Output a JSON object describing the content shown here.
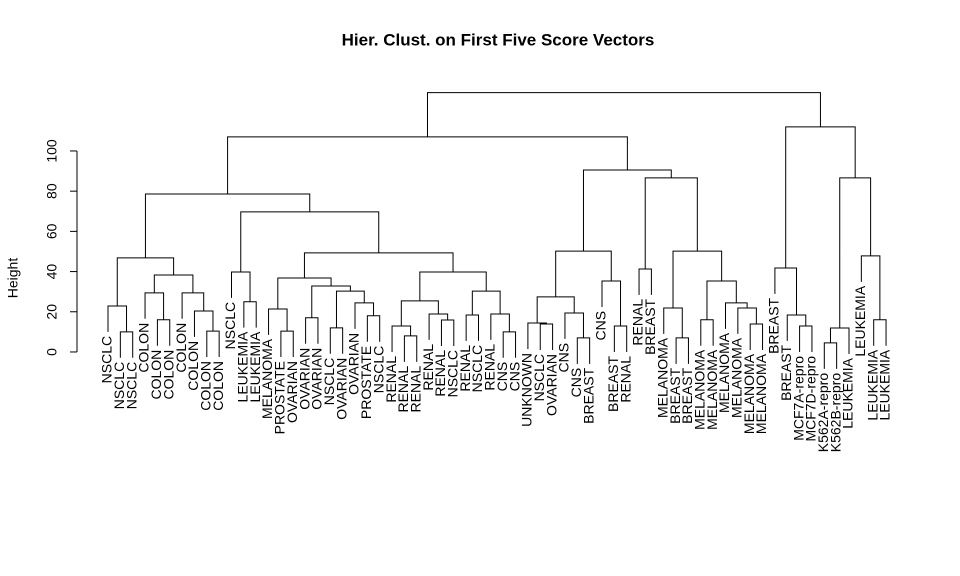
{
  "chart_data": {
    "type": "dendrogram",
    "title": "Hier. Clust. on First Five Score Vectors",
    "y_label": "Height",
    "ylim": [
      -13,
      136
    ],
    "yticks": [
      0,
      20,
      40,
      60,
      80,
      100
    ],
    "color": "#000000",
    "tree": {
      "height": 129,
      "children": [
        {
          "height": 107,
          "children": [
            {
              "height": 78.6,
              "children": [
                {
                  "height": 46.8,
                  "children": [
                    {
                      "height": 22.9,
                      "children": [
                        {
                          "label": "NSCLC"
                        },
                        {
                          "height": 10,
                          "children": [
                            {
                              "label": "NSCLC"
                            },
                            {
                              "label": "NSCLC"
                            }
                          ]
                        }
                      ]
                    },
                    {
                      "height": 38.3,
                      "children": [
                        {
                          "height": 29.4,
                          "children": [
                            {
                              "label": "COLON"
                            },
                            {
                              "height": 16,
                              "children": [
                                {
                                  "label": "COLON"
                                },
                                {
                                  "label": "COLON"
                                }
                              ]
                            }
                          ]
                        },
                        {
                          "height": 29.4,
                          "children": [
                            {
                              "label": "COLON"
                            },
                            {
                              "height": 20.4,
                              "children": [
                                {
                                  "label": "COLON"
                                },
                                {
                                  "height": 10.4,
                                  "children": [
                                    {
                                      "label": "COLON"
                                    },
                                    {
                                      "label": "COLON"
                                    }
                                  ]
                                }
                              ]
                            }
                          ]
                        }
                      ]
                    }
                  ]
                },
                {
                  "height": 69.7,
                  "children": [
                    {
                      "height": 39.8,
                      "children": [
                        {
                          "label": "NSCLC"
                        },
                        {
                          "height": 25,
                          "children": [
                            {
                              "label": "LEUKEMIA"
                            },
                            {
                              "label": "LEUKEMIA"
                            }
                          ]
                        }
                      ]
                    },
                    {
                      "height": 49.3,
                      "children": [
                        {
                          "height": 36.8,
                          "children": [
                            {
                              "height": 21.4,
                              "children": [
                                {
                                  "label": "MELANOMA"
                                },
                                {
                                  "height": 10.4,
                                  "children": [
                                    {
                                      "label": "PROSTATE"
                                    },
                                    {
                                      "label": "OVARIAN"
                                    }
                                  ]
                                }
                              ]
                            },
                            {
                              "height": 32.8,
                              "children": [
                                {
                                  "height": 17,
                                  "children": [
                                    {
                                      "label": "OVARIAN"
                                    },
                                    {
                                      "label": "OVARIAN"
                                    }
                                  ]
                                },
                                {
                                  "height": 30.3,
                                  "children": [
                                    {
                                      "height": 12,
                                      "children": [
                                        {
                                          "label": "NSCLC"
                                        },
                                        {
                                          "label": "OVARIAN"
                                        }
                                      ]
                                    },
                                    {
                                      "height": 24.4,
                                      "children": [
                                        {
                                          "label": "OVARIAN"
                                        },
                                        {
                                          "height": 18,
                                          "children": [
                                            {
                                              "label": "PROSTATE"
                                            },
                                            {
                                              "label": "NSCLC"
                                            }
                                          ]
                                        }
                                      ]
                                    }
                                  ]
                                }
                              ]
                            }
                          ]
                        },
                        {
                          "height": 39.8,
                          "children": [
                            {
                              "height": 25.4,
                              "children": [
                                {
                                  "height": 12.9,
                                  "children": [
                                    {
                                      "label": "RENAL"
                                    },
                                    {
                                      "height": 8,
                                      "children": [
                                        {
                                          "label": "RENAL"
                                        },
                                        {
                                          "label": "RENAL"
                                        }
                                      ]
                                    }
                                  ]
                                },
                                {
                                  "height": 18.9,
                                  "children": [
                                    {
                                      "label": "RENAL"
                                    },
                                    {
                                      "height": 15.9,
                                      "children": [
                                        {
                                          "label": "RENAL"
                                        },
                                        {
                                          "label": "NSCLC"
                                        }
                                      ]
                                    }
                                  ]
                                }
                              ]
                            },
                            {
                              "height": 30.3,
                              "children": [
                                {
                                  "height": 18.4,
                                  "children": [
                                    {
                                      "label": "RENAL"
                                    },
                                    {
                                      "label": "NSCLC"
                                    }
                                  ]
                                },
                                {
                                  "height": 18.9,
                                  "children": [
                                    {
                                      "label": "RENAL"
                                    },
                                    {
                                      "height": 10,
                                      "children": [
                                        {
                                          "label": "CNS"
                                        },
                                        {
                                          "label": "CNS"
                                        }
                                      ]
                                    }
                                  ]
                                }
                              ]
                            }
                          ]
                        }
                      ]
                    }
                  ]
                }
              ]
            },
            {
              "height": 90.5,
              "children": [
                {
                  "height": 50.2,
                  "children": [
                    {
                      "height": 27.4,
                      "children": [
                        {
                          "height": 14.4,
                          "children": [
                            {
                              "label": "UNKNOWN"
                            },
                            {
                              "height": 13.9,
                              "children": [
                                {
                                  "label": "NSCLC"
                                },
                                {
                                  "label": "OVARIAN"
                                }
                              ]
                            }
                          ]
                        },
                        {
                          "height": 19.4,
                          "children": [
                            {
                              "label": "CNS"
                            },
                            {
                              "height": 7,
                              "children": [
                                {
                                  "label": "CNS"
                                },
                                {
                                  "label": "BREAST"
                                }
                              ]
                            }
                          ]
                        }
                      ]
                    },
                    {
                      "height": 35.3,
                      "children": [
                        {
                          "label": "CNS"
                        },
                        {
                          "height": 12.9,
                          "children": [
                            {
                              "label": "BREAST"
                            },
                            {
                              "label": "RENAL"
                            }
                          ]
                        }
                      ]
                    }
                  ]
                },
                {
                  "height": 86.6,
                  "children": [
                    {
                      "height": 41.3,
                      "children": [
                        {
                          "label": "RENAL"
                        },
                        {
                          "label": "BREAST"
                        }
                      ]
                    },
                    {
                      "height": 50.2,
                      "children": [
                        {
                          "height": 21.9,
                          "children": [
                            {
                              "label": "MELANOMA"
                            },
                            {
                              "height": 7,
                              "children": [
                                {
                                  "label": "BREAST"
                                },
                                {
                                  "label": "BREAST"
                                }
                              ]
                            }
                          ]
                        },
                        {
                          "height": 35.3,
                          "children": [
                            {
                              "height": 16,
                              "children": [
                                {
                                  "label": "MELANOMA"
                                },
                                {
                                  "label": "MELANOMA"
                                }
                              ]
                            },
                            {
                              "height": 24.4,
                              "children": [
                                {
                                  "label": "MELANOMA"
                                },
                                {
                                  "height": 21.9,
                                  "children": [
                                    {
                                      "label": "MELANOMA"
                                    },
                                    {
                                      "height": 13.9,
                                      "children": [
                                        {
                                          "label": "MELANOMA"
                                        },
                                        {
                                          "label": "MELANOMA"
                                        }
                                      ]
                                    }
                                  ]
                                }
                              ]
                            }
                          ]
                        }
                      ]
                    }
                  ]
                }
              ]
            }
          ]
        },
        {
          "height": 112,
          "children": [
            {
              "height": 41.8,
              "children": [
                {
                  "label": "BREAST"
                },
                {
                  "height": 18.4,
                  "children": [
                    {
                      "label": "BREAST"
                    },
                    {
                      "height": 12.9,
                      "children": [
                        {
                          "label": "MCF7A-repro"
                        },
                        {
                          "label": "MCF7D-repro"
                        }
                      ]
                    }
                  ]
                }
              ]
            },
            {
              "height": 86.6,
              "children": [
                {
                  "height": 11.9,
                  "children": [
                    {
                      "height": 4.5,
                      "children": [
                        {
                          "label": "K562A-repro"
                        },
                        {
                          "label": "K562B-repro"
                        }
                      ]
                    },
                    {
                      "label": "LEUKEMIA"
                    }
                  ]
                },
                {
                  "height": 47.8,
                  "children": [
                    {
                      "label": "LEUKEMIA"
                    },
                    {
                      "height": 16,
                      "children": [
                        {
                          "label": "LEUKEMIA"
                        },
                        {
                          "label": "LEUKEMIA"
                        }
                      ]
                    }
                  ]
                }
              ]
            }
          ]
        }
      ]
    }
  }
}
